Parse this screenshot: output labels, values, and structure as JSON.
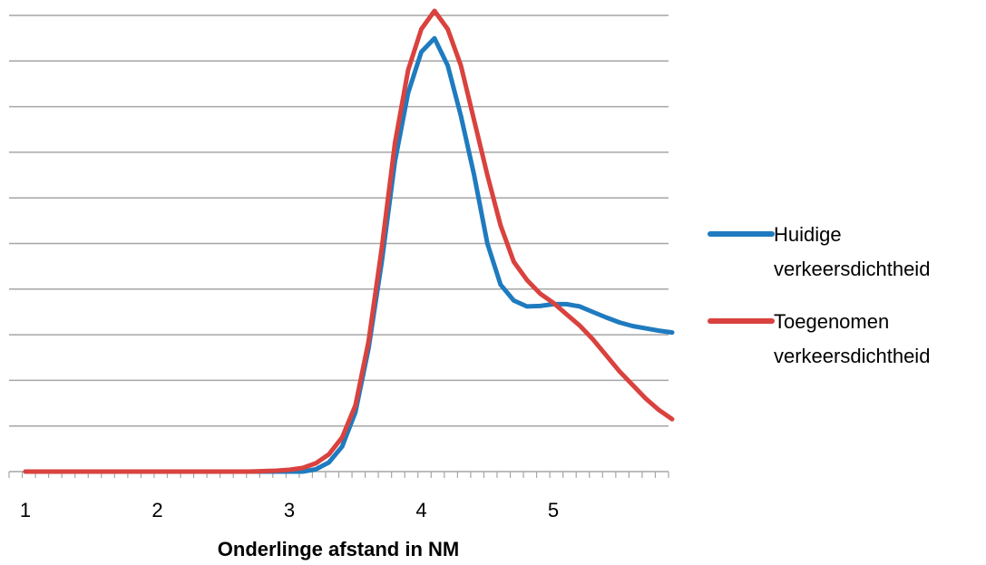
{
  "chart_data": {
    "type": "line",
    "title": "",
    "xlabel": "Onderlinge afstand in NM",
    "ylabel": "",
    "xlim": [
      1,
      6
    ],
    "ylim": [
      0,
      10
    ],
    "grid": true,
    "legend_position": "right",
    "x_tick_labels": [
      {
        "value": 1,
        "label": "1"
      },
      {
        "value": 2,
        "label": "2"
      },
      {
        "value": 3,
        "label": "3"
      },
      {
        "value": 4,
        "label": "4"
      },
      {
        "value": 5,
        "label": "5"
      }
    ],
    "x": [
      1.0,
      1.1,
      1.2,
      1.3,
      1.4,
      1.5,
      1.6,
      1.7,
      1.8,
      1.9,
      2.0,
      2.1,
      2.2,
      2.3,
      2.4,
      2.5,
      2.6,
      2.7,
      2.8,
      2.9,
      3.0,
      3.1,
      3.2,
      3.3,
      3.4,
      3.5,
      3.6,
      3.7,
      3.8,
      3.9,
      4.0,
      4.1,
      4.2,
      4.3,
      4.4,
      4.5,
      4.6,
      4.7,
      4.8,
      4.9,
      5.0,
      5.1,
      5.2,
      5.3,
      5.4,
      5.5,
      5.6,
      5.7,
      5.8,
      5.9
    ],
    "series": [
      {
        "name": "Huidige verkeersdichtheid",
        "color": "#1f7bbf",
        "values": [
          0,
          0,
          0,
          0,
          0,
          0,
          0,
          0,
          0,
          0,
          0,
          0,
          0,
          0,
          0,
          0,
          0,
          0,
          0,
          0,
          0,
          0,
          0.05,
          0.2,
          0.55,
          1.3,
          2.7,
          4.6,
          6.8,
          8.3,
          9.2,
          9.5,
          8.9,
          7.8,
          6.5,
          5.0,
          4.1,
          3.75,
          3.62,
          3.63,
          3.67,
          3.67,
          3.62,
          3.5,
          3.38,
          3.27,
          3.19,
          3.14,
          3.09,
          3.05
        ]
      },
      {
        "name": "Toegenomen verkeersdichtheid",
        "color": "#d9423e",
        "values": [
          0,
          0,
          0,
          0,
          0,
          0,
          0,
          0,
          0,
          0,
          0,
          0,
          0,
          0,
          0,
          0,
          0,
          0,
          0.01,
          0.02,
          0.04,
          0.08,
          0.18,
          0.38,
          0.75,
          1.45,
          2.85,
          4.9,
          7.2,
          8.8,
          9.7,
          10.1,
          9.7,
          8.9,
          7.7,
          6.5,
          5.4,
          4.6,
          4.2,
          3.9,
          3.7,
          3.45,
          3.2,
          2.9,
          2.55,
          2.2,
          1.9,
          1.6,
          1.35,
          1.15
        ]
      }
    ]
  }
}
